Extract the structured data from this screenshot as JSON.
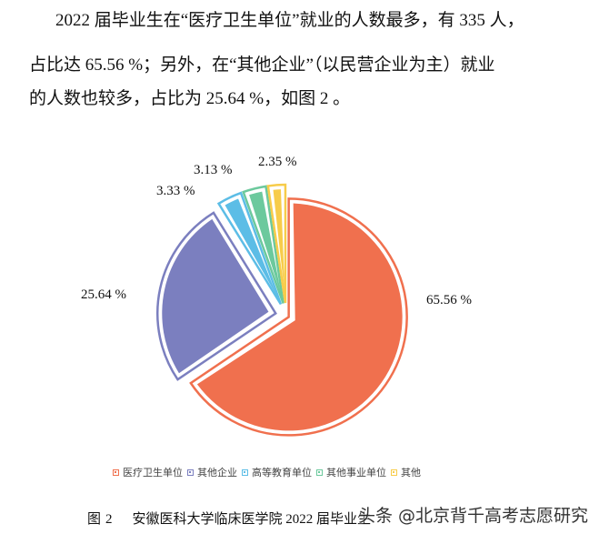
{
  "paragraph": {
    "line1": "2022 届毕业生在“医疗卫生单位”就业的人数最多，有 335 人，",
    "line2": "占比达 65.56 %；另外，在“其他企业”（以民营企业为主）就业",
    "line3": "的人数也较多，占比为 25.64 %，如图 2 。"
  },
  "chart_data": {
    "type": "pie",
    "title": "安徽医科大学临床医学院 2022 届毕业生就业单位性质分布",
    "categories": [
      "医疗卫生单位",
      "其他企业",
      "高等教育单位",
      "其他事业单位",
      "其他"
    ],
    "values": [
      65.56,
      25.64,
      3.33,
      3.13,
      2.35
    ],
    "labels": [
      "65.56 %",
      "25.64 %",
      "3.33 %",
      "3.13 %",
      "2.35 %"
    ],
    "colors": [
      "#f0704e",
      "#7b7fbf",
      "#5cbde6",
      "#6cc99d",
      "#f7cc4a"
    ],
    "unit": "%",
    "start_angle": "12 o'clock",
    "direction": "clockwise",
    "exploded": true,
    "legend_position": "bottom"
  },
  "legend": {
    "items": [
      "医疗卫生单位",
      "其他企业",
      "高等教育单位",
      "其他事业单位",
      "其他"
    ]
  },
  "caption": {
    "figure_label": "图",
    "figure_number": "2",
    "text": "安徽医科大学临床医学院 2022 届毕业生"
  },
  "watermark": {
    "text": "头条 @北京背千高考志愿研究"
  }
}
